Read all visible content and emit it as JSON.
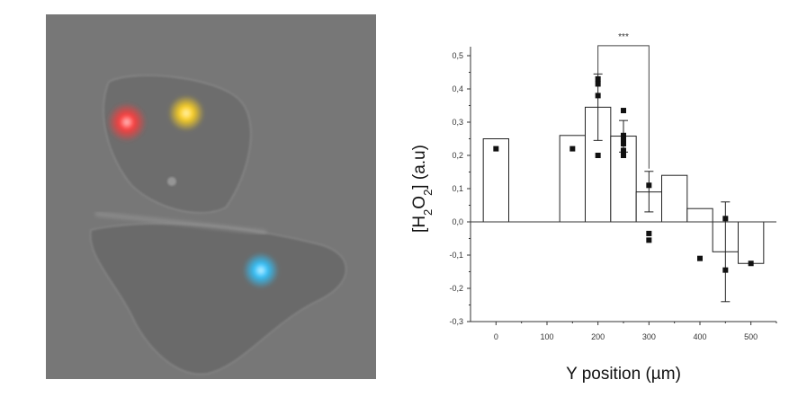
{
  "micrograph": {
    "spot_colors": [
      "#ff3b3b",
      "#ffd21f",
      "#2fc4ff"
    ]
  },
  "chart_data": {
    "type": "bar",
    "xlabel": "Y position (µm)",
    "ylabel_parts": [
      "[H",
      "2",
      "O",
      "2",
      "] (a.u)"
    ],
    "xlim": [
      -50,
      550
    ],
    "ylim": [
      -0.3,
      0.5
    ],
    "x_ticks": [
      "0",
      "100",
      "200",
      "300",
      "400",
      "500"
    ],
    "y_ticks": [
      "-0,3",
      "-0,2",
      "-0,1",
      "0,0",
      "0,1",
      "0,2",
      "0,3",
      "0,4",
      "0,5"
    ],
    "bars": [
      {
        "x": 0,
        "value": 0.25
      },
      {
        "x": 150,
        "value": 0.26
      },
      {
        "x": 200,
        "value": 0.345
      },
      {
        "x": 250,
        "value": 0.258
      },
      {
        "x": 300,
        "value": 0.09
      },
      {
        "x": 350,
        "value": 0.14
      },
      {
        "x": 400,
        "value": 0.04
      },
      {
        "x": 450,
        "value": -0.09
      },
      {
        "x": 500,
        "value": -0.125
      }
    ],
    "bar_width": 50,
    "error_bars": [
      {
        "x": 200,
        "low": 0.245,
        "high": 0.445
      },
      {
        "x": 250,
        "low": 0.21,
        "high": 0.305
      },
      {
        "x": 300,
        "low": 0.03,
        "high": 0.152
      },
      {
        "x": 450,
        "low": -0.24,
        "high": 0.06
      }
    ],
    "points": [
      [
        0,
        0.22
      ],
      [
        150,
        0.22
      ],
      [
        200,
        0.43
      ],
      [
        200,
        0.415
      ],
      [
        200,
        0.38
      ],
      [
        200,
        0.2
      ],
      [
        250,
        0.335
      ],
      [
        250,
        0.26
      ],
      [
        250,
        0.25
      ],
      [
        250,
        0.235
      ],
      [
        250,
        0.215
      ],
      [
        250,
        0.2
      ],
      [
        300,
        0.11
      ],
      [
        300,
        -0.035
      ],
      [
        300,
        -0.055
      ],
      [
        400,
        -0.11
      ],
      [
        450,
        0.01
      ],
      [
        450,
        -0.145
      ],
      [
        500,
        -0.125
      ]
    ],
    "significance": {
      "x1": 200,
      "x2": 300,
      "y": 0.53,
      "label": "***"
    }
  }
}
